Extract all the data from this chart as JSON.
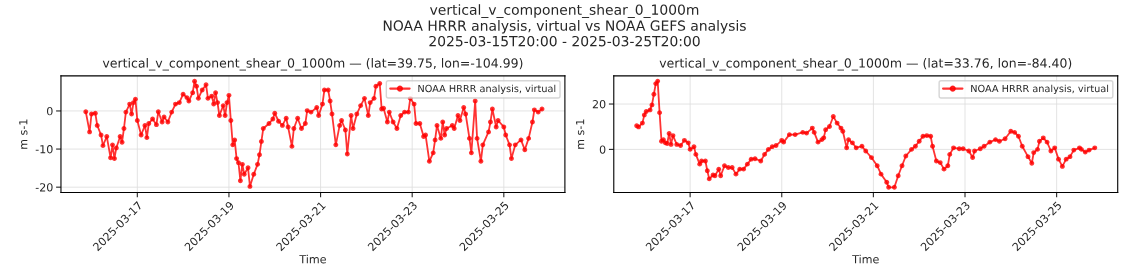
{
  "chart_data": [
    {
      "type": "line",
      "title": "vertical_v_component_shear_0_1000m — (lat=39.75, lon=-104.99)",
      "annotations": [
        "vertical_v_component_shear_0_1000m",
        "NOAA HRRR analysis, virtual vs NOAA GEFS analysis",
        "2025-03-15T20:00 - 2025-03-25T20:00"
      ],
      "xlabel": "Time",
      "ylabel": "m s-1",
      "xlim": [
        "2025-03-15T08:00",
        "2025-03-26T08:00"
      ],
      "xticks": [
        "2025-03-17",
        "2025-03-19",
        "2025-03-21",
        "2025-03-23",
        "2025-03-25"
      ],
      "ylim": [
        -21.4,
        9.2
      ],
      "yticks": [
        -20,
        -10,
        0
      ],
      "grid": true,
      "legend": "top right",
      "marker": "circle",
      "line_style": "solid",
      "series": [
        {
          "name": "NOAA HRRR analysis, virtual",
          "color": "#ff0000",
          "x": [
            "2025-03-15T21:00",
            "2025-03-15T23:00",
            "2025-03-16T00:00",
            "2025-03-16T02:00",
            "2025-03-16T03:00",
            "2025-03-16T05:00",
            "2025-03-16T06:00",
            "2025-03-16T08:00",
            "2025-03-16T10:00",
            "2025-03-16T11:00",
            "2025-03-16T12:00",
            "2025-03-16T13:00",
            "2025-03-16T15:00",
            "2025-03-16T16:00",
            "2025-03-16T17:00",
            "2025-03-16T18:00",
            "2025-03-16T20:00",
            "2025-03-16T21:00",
            "2025-03-16T22:00",
            "2025-03-16T23:00",
            "2025-03-17T00:00",
            "2025-03-17T02:00",
            "2025-03-17T04:00",
            "2025-03-17T05:00",
            "2025-03-17T06:00",
            "2025-03-17T08:00",
            "2025-03-17T10:00",
            "2025-03-17T11:00",
            "2025-03-17T13:00",
            "2025-03-17T14:00",
            "2025-03-17T16:00",
            "2025-03-17T18:00",
            "2025-03-17T20:00",
            "2025-03-17T22:00",
            "2025-03-18T00:00",
            "2025-03-18T02:00",
            "2025-03-18T03:00",
            "2025-03-18T05:00",
            "2025-03-18T06:00",
            "2025-03-18T07:00",
            "2025-03-18T08:00",
            "2025-03-18T10:00",
            "2025-03-18T12:00",
            "2025-03-18T13:00",
            "2025-03-18T15:00",
            "2025-03-18T16:00",
            "2025-03-18T17:00",
            "2025-03-18T18:00",
            "2025-03-18T19:00",
            "2025-03-18T21:00",
            "2025-03-18T22:00",
            "2025-03-18T23:00",
            "2025-03-19T00:00",
            "2025-03-19T01:00",
            "2025-03-19T02:00",
            "2025-03-19T03:00",
            "2025-03-19T04:00",
            "2025-03-19T05:00",
            "2025-03-19T06:00",
            "2025-03-19T07:00",
            "2025-03-19T08:00",
            "2025-03-19T10:00",
            "2025-03-19T11:00",
            "2025-03-19T13:00",
            "2025-03-19T15:00",
            "2025-03-19T16:00",
            "2025-03-19T17:00",
            "2025-03-19T18:00",
            "2025-03-19T21:00",
            "2025-03-19T23:00",
            "2025-03-20T00:00",
            "2025-03-20T02:00",
            "2025-03-20T04:00",
            "2025-03-20T06:00",
            "2025-03-20T07:00",
            "2025-03-20T09:00",
            "2025-03-20T10:00",
            "2025-03-20T12:00",
            "2025-03-20T14:00",
            "2025-03-20T16:00",
            "2025-03-20T17:00",
            "2025-03-20T19:00",
            "2025-03-20T22:00",
            "2025-03-20T23:00",
            "2025-03-21T01:00",
            "2025-03-21T02:00",
            "2025-03-21T04:00",
            "2025-03-21T05:00",
            "2025-03-21T06:00",
            "2025-03-21T08:00",
            "2025-03-21T10:00",
            "2025-03-21T11:00",
            "2025-03-21T13:00",
            "2025-03-21T14:00",
            "2025-03-21T16:00",
            "2025-03-21T17:00",
            "2025-03-21T19:00",
            "2025-03-21T21:00",
            "2025-03-21T23:00",
            "2025-03-22T01:00",
            "2025-03-22T02:00",
            "2025-03-22T04:00",
            "2025-03-22T05:00",
            "2025-03-22T07:00",
            "2025-03-22T08:00",
            "2025-03-22T09:00",
            "2025-03-22T11:00",
            "2025-03-22T12:00",
            "2025-03-22T14:00",
            "2025-03-22T16:00",
            "2025-03-22T18:00",
            "2025-03-22T20:00",
            "2025-03-22T22:00",
            "2025-03-22T23:00",
            "2025-03-23T01:00",
            "2025-03-23T02:00",
            "2025-03-23T04:00",
            "2025-03-23T06:00",
            "2025-03-23T07:00",
            "2025-03-23T09:00",
            "2025-03-23T11:00",
            "2025-03-23T12:00",
            "2025-03-23T13:00",
            "2025-03-23T15:00",
            "2025-03-23T16:00",
            "2025-03-23T17:00",
            "2025-03-23T18:00",
            "2025-03-23T21:00",
            "2025-03-23T22:00",
            "2025-03-24T00:00",
            "2025-03-24T01:00",
            "2025-03-24T03:00",
            "2025-03-24T04:00",
            "2025-03-24T06:00",
            "2025-03-24T07:00",
            "2025-03-24T09:00",
            "2025-03-24T10:00",
            "2025-03-24T12:00",
            "2025-03-24T13:00",
            "2025-03-24T16:00",
            "2025-03-24T17:00",
            "2025-03-24T18:00",
            "2025-03-24T20:00",
            "2025-03-24T21:00",
            "2025-03-25T00:00",
            "2025-03-25T01:00",
            "2025-03-25T03:00",
            "2025-03-25T04:00",
            "2025-03-25T06:00",
            "2025-03-25T09:00",
            "2025-03-25T11:00",
            "2025-03-25T13:00",
            "2025-03-25T15:00",
            "2025-03-25T16:00",
            "2025-03-25T18:00",
            "2025-03-25T20:00"
          ],
          "values": [
            -0.2,
            -5.5,
            -0.8,
            -0.6,
            -3.8,
            -6.3,
            -9.1,
            -6.7,
            -12.3,
            -8.9,
            -12.5,
            -9.7,
            -6.7,
            -8.2,
            -4.6,
            -0.3,
            1.8,
            -0.8,
            2.2,
            3.1,
            -2.5,
            -6.3,
            -3.8,
            -7.0,
            -3.3,
            -2.1,
            -3.6,
            -0.2,
            -2.9,
            -1.6,
            -2.9,
            -0.3,
            1.8,
            2.2,
            4.4,
            3.5,
            2.6,
            4.8,
            7.8,
            6.5,
            3.3,
            5.5,
            6.9,
            3.3,
            3.9,
            1.8,
            4.8,
            2.2,
            -1.2,
            1.4,
            -1.2,
            2.2,
            4.1,
            -2.5,
            -8.9,
            -7.6,
            -12.5,
            -13.6,
            -18.3,
            -14.0,
            -16.6,
            -14.9,
            -19.8,
            -16.6,
            -14.0,
            -11.5,
            -8.0,
            -4.6,
            -3.3,
            -2.1,
            -0.6,
            -2.7,
            -3.8,
            -1.9,
            -4.2,
            -9.3,
            -4.6,
            -1.9,
            -4.6,
            -3.3,
            0.1,
            -0.3,
            0.9,
            -1.2,
            1.8,
            5.5,
            5.5,
            2.6,
            -0.8,
            -8.9,
            -3.8,
            -2.5,
            -5.0,
            -11.3,
            -1.2,
            -4.6,
            -0.8,
            1.4,
            3.3,
            -1.2,
            2.2,
            3.3,
            6.5,
            7.2,
            0.5,
            0.7,
            -2.9,
            -0.3,
            -2.9,
            -4.6,
            -1.2,
            -0.3,
            -0.3,
            3.3,
            1.8,
            -3.3,
            -3.3,
            -6.7,
            -6.3,
            -13.2,
            -11.0,
            -7.6,
            -3.8,
            -7.2,
            -2.9,
            -6.3,
            -4.6,
            -3.8,
            -4.6,
            -1.2,
            -2.5,
            0.9,
            -0.8,
            -7.2,
            -11.0,
            2.6,
            -7.2,
            -13.2,
            -8.9,
            -5.5,
            -2.9,
            0.5,
            -4.2,
            -2.5,
            -4.2,
            -6.3,
            -8.9,
            -12.5,
            -8.9,
            -7.6,
            -10.2,
            -7.2,
            -2.9,
            0.3,
            -0.3,
            0.5
          ]
        }
      ]
    },
    {
      "type": "line",
      "title": "vertical_v_component_shear_0_1000m — (lat=33.76, lon=-84.40)",
      "xlabel": "Time",
      "ylabel": "m s-1",
      "xlim": [
        "2025-03-15T08:00",
        "2025-03-26T08:00"
      ],
      "xticks": [
        "2025-03-17",
        "2025-03-19",
        "2025-03-21",
        "2025-03-23",
        "2025-03-25"
      ],
      "ylim": [
        -19.0,
        32.4
      ],
      "yticks": [
        0,
        20
      ],
      "grid": true,
      "legend": "top right",
      "marker": "circle",
      "line_style": "solid",
      "series": [
        {
          "name": "NOAA HRRR analysis, virtual",
          "color": "#ff0000",
          "x": [
            "2025-03-15T20:00",
            "2025-03-15T21:00",
            "2025-03-15T23:00",
            "2025-03-16T00:00",
            "2025-03-16T01:00",
            "2025-03-16T03:00",
            "2025-03-16T04:00",
            "2025-03-16T05:00",
            "2025-03-16T06:00",
            "2025-03-16T07:00",
            "2025-03-16T08:00",
            "2025-03-16T09:00",
            "2025-03-16T10:00",
            "2025-03-16T11:00",
            "2025-03-16T12:00",
            "2025-03-16T13:00",
            "2025-03-16T14:00",
            "2025-03-16T15:00",
            "2025-03-16T17:00",
            "2025-03-16T19:00",
            "2025-03-16T21:00",
            "2025-03-16T23:00",
            "2025-03-17T00:00",
            "2025-03-17T02:00",
            "2025-03-17T03:00",
            "2025-03-17T05:00",
            "2025-03-17T06:00",
            "2025-03-17T08:00",
            "2025-03-17T09:00",
            "2025-03-17T10:00",
            "2025-03-17T12:00",
            "2025-03-17T13:00",
            "2025-03-17T15:00",
            "2025-03-17T16:00",
            "2025-03-17T18:00",
            "2025-03-17T20:00",
            "2025-03-17T22:00",
            "2025-03-18T00:00",
            "2025-03-18T02:00",
            "2025-03-18T04:00",
            "2025-03-18T06:00",
            "2025-03-18T08:00",
            "2025-03-18T10:00",
            "2025-03-18T13:00",
            "2025-03-18T15:00",
            "2025-03-18T17:00",
            "2025-03-18T19:00",
            "2025-03-18T21:00",
            "2025-03-19T00:00",
            "2025-03-19T01:00",
            "2025-03-19T04:00",
            "2025-03-19T07:00",
            "2025-03-19T11:00",
            "2025-03-19T13:00",
            "2025-03-19T16:00",
            "2025-03-19T17:00",
            "2025-03-19T19:00",
            "2025-03-19T21:00",
            "2025-03-19T22:00",
            "2025-03-19T23:00",
            "2025-03-20T01:00",
            "2025-03-20T03:00",
            "2025-03-20T05:00",
            "2025-03-20T07:00",
            "2025-03-20T08:00",
            "2025-03-20T10:00",
            "2025-03-20T11:00",
            "2025-03-20T13:00",
            "2025-03-20T15:00",
            "2025-03-20T18:00",
            "2025-03-20T20:00",
            "2025-03-20T23:00",
            "2025-03-21T02:00",
            "2025-03-21T04:00",
            "2025-03-21T07:00",
            "2025-03-21T08:00",
            "2025-03-21T11:00",
            "2025-03-21T13:00",
            "2025-03-21T15:00",
            "2025-03-21T17:00",
            "2025-03-21T20:00",
            "2025-03-21T22:00",
            "2025-03-22T00:00",
            "2025-03-22T02:00",
            "2025-03-22T04:00",
            "2025-03-22T06:00",
            "2025-03-22T07:00",
            "2025-03-22T09:00",
            "2025-03-22T11:00",
            "2025-03-22T13:00",
            "2025-03-22T15:00",
            "2025-03-22T16:00",
            "2025-03-22T18:00",
            "2025-03-22T21:00",
            "2025-03-22T23:00",
            "2025-03-23T02:00",
            "2025-03-23T04:00",
            "2025-03-23T05:00",
            "2025-03-23T08:00",
            "2025-03-23T10:00",
            "2025-03-23T13:00",
            "2025-03-23T16:00",
            "2025-03-23T18:00",
            "2025-03-23T21:00",
            "2025-03-24T00:00",
            "2025-03-24T02:00",
            "2025-03-24T04:00",
            "2025-03-24T06:00",
            "2025-03-24T09:00",
            "2025-03-24T11:00",
            "2025-03-24T12:00",
            "2025-03-24T14:00",
            "2025-03-24T15:00",
            "2025-03-24T17:00",
            "2025-03-24T19:00",
            "2025-03-24T21:00",
            "2025-03-24T23:00",
            "2025-03-25T01:00",
            "2025-03-25T03:00",
            "2025-03-25T05:00",
            "2025-03-25T07:00",
            "2025-03-25T09:00",
            "2025-03-25T12:00",
            "2025-03-25T13:00",
            "2025-03-25T15:00",
            "2025-03-25T17:00",
            "2025-03-25T20:00"
          ],
          "values": [
            10.4,
            9.9,
            11.6,
            15.2,
            16.7,
            17.4,
            19.6,
            24.3,
            29.0,
            30.1,
            16.2,
            3.6,
            4.3,
            2.9,
            2.6,
            7.0,
            2.2,
            6.1,
            2.2,
            1.7,
            4.0,
            2.9,
            0,
            1.2,
            -2.2,
            -6.5,
            -5.1,
            -5.1,
            -9.4,
            -13.0,
            -11.3,
            -11.6,
            -8.7,
            -11.6,
            -7.2,
            -8.0,
            -8.0,
            -10.9,
            -8.7,
            -8.7,
            -6.5,
            -4.3,
            -4.1,
            -5.1,
            -2.2,
            0,
            1.2,
            1.7,
            4.0,
            3.2,
            6.5,
            6.5,
            7.5,
            7.2,
            9.4,
            7.5,
            3.2,
            4.3,
            5.1,
            8.7,
            10.1,
            14.5,
            11.6,
            9.4,
            8.0,
            0.7,
            4.3,
            2.9,
            0.7,
            1.4,
            -0.7,
            -3.6,
            -7.2,
            -10.9,
            -14.5,
            -16.7,
            -16.7,
            -11.6,
            -7.2,
            -2.9,
            0,
            1.4,
            3.6,
            5.8,
            6.1,
            5.8,
            1.4,
            -5.1,
            -5.8,
            -8.7,
            -7.2,
            -2.2,
            0.7,
            0.3,
            0.3,
            -0.7,
            -3.6,
            -0.7,
            0.3,
            1.4,
            3.2,
            4.3,
            3.6,
            4.7,
            8.0,
            7.5,
            5.8,
            1.4,
            -3.2,
            -6.1,
            -1.4,
            0,
            3.6,
            5.1,
            3.2,
            -0.7,
            0.7,
            -4.3,
            -7.5,
            -4.3,
            -3.2,
            -0.3,
            0.7,
            0,
            -1.2,
            -0.3,
            0.7
          ]
        }
      ]
    }
  ]
}
